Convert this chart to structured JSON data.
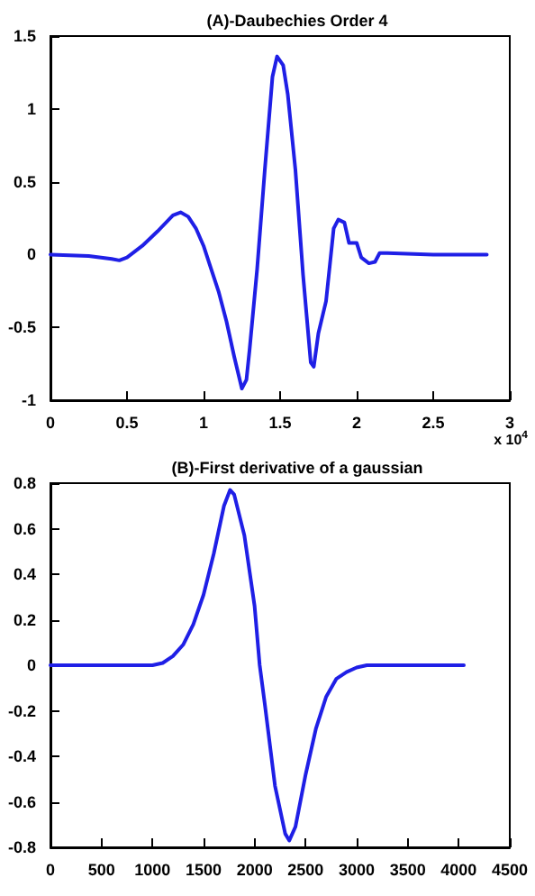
{
  "chart_data": [
    {
      "type": "line",
      "title": "(A)-Daubechies Order 4",
      "annotations": [
        "x 10$^{4}$"
      ],
      "xlim": [
        0,
        3
      ],
      "xticks": [
        0,
        0.5,
        1,
        1.5,
        2,
        2.5,
        3
      ],
      "ylim": [
        -1,
        1.5
      ],
      "yticks": [
        -1,
        -0.5,
        0,
        0.5,
        1,
        1.5
      ],
      "grid": false,
      "marker": "none",
      "line_style": "solid",
      "series": [
        {
          "color": "#1f1fe6",
          "x": [
            0,
            0.25,
            0.4,
            0.45,
            0.5,
            0.6,
            0.7,
            0.8,
            0.85,
            0.9,
            0.95,
            1.0,
            1.05,
            1.1,
            1.15,
            1.2,
            1.25,
            1.28,
            1.3,
            1.35,
            1.4,
            1.45,
            1.48,
            1.52,
            1.55,
            1.6,
            1.65,
            1.7,
            1.72,
            1.75,
            1.8,
            1.85,
            1.88,
            1.92,
            1.95,
            2.0,
            2.03,
            2.08,
            2.12,
            2.15,
            2.2,
            2.5,
            2.85
          ],
          "values": [
            0,
            -0.01,
            -0.03,
            -0.04,
            -0.02,
            0.06,
            0.16,
            0.27,
            0.29,
            0.26,
            0.18,
            0.06,
            -0.1,
            -0.26,
            -0.46,
            -0.7,
            -0.92,
            -0.86,
            -0.66,
            -0.1,
            0.58,
            1.22,
            1.36,
            1.3,
            1.1,
            0.58,
            -0.14,
            -0.74,
            -0.77,
            -0.54,
            -0.32,
            0.18,
            0.24,
            0.22,
            0.08,
            0.08,
            -0.02,
            -0.06,
            -0.05,
            0.01,
            0.01,
            0,
            0
          ]
        }
      ]
    },
    {
      "type": "line",
      "title": "(B)-First derivative of a gaussian",
      "xlim": [
        0,
        4500
      ],
      "xticks": [
        0,
        500,
        1000,
        1500,
        2000,
        2500,
        3000,
        3500,
        4000,
        4500
      ],
      "ylim": [
        -0.8,
        0.8
      ],
      "yticks": [
        -0.8,
        -0.6,
        -0.4,
        -0.2,
        0,
        0.2,
        0.4,
        0.6,
        0.8
      ],
      "grid": false,
      "marker": "none",
      "line_style": "solid",
      "series": [
        {
          "color": "#1f1fe6",
          "x": [
            0,
            1000,
            1100,
            1200,
            1300,
            1400,
            1500,
            1600,
            1700,
            1760,
            1800,
            1900,
            2000,
            2050,
            2100,
            2200,
            2300,
            2340,
            2400,
            2500,
            2600,
            2700,
            2800,
            2900,
            3000,
            3100,
            4050
          ],
          "values": [
            0,
            0,
            0.01,
            0.04,
            0.09,
            0.18,
            0.31,
            0.49,
            0.7,
            0.77,
            0.75,
            0.57,
            0.26,
            0,
            -0.17,
            -0.53,
            -0.74,
            -0.77,
            -0.71,
            -0.48,
            -0.28,
            -0.14,
            -0.06,
            -0.03,
            -0.01,
            0,
            0
          ]
        }
      ]
    }
  ]
}
